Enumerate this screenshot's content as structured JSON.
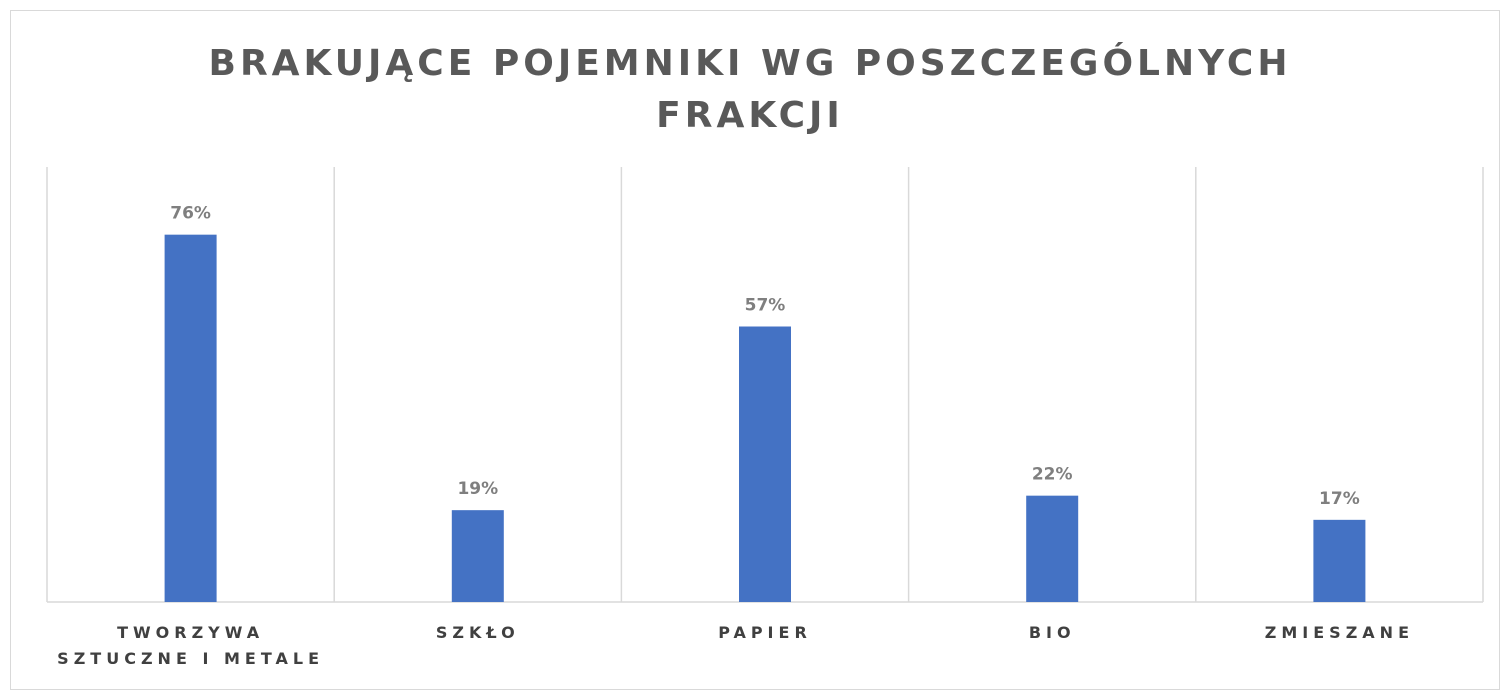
{
  "chart_data": {
    "type": "bar",
    "title": "BRAKUJĄCE POJEMNIKI WG POSZCZEGÓLNYCH FRAKCJI",
    "categories": [
      "TWORZYWA SZTUCZNE I METALE",
      "SZKŁO",
      "PAPIER",
      "BIO",
      "ZMIESZANE"
    ],
    "values": [
      76,
      19,
      57,
      22,
      17
    ],
    "value_labels": [
      "76%",
      "19%",
      "57%",
      "22%",
      "17%"
    ],
    "color": "#4472c4",
    "ylim": [
      0,
      90
    ]
  }
}
